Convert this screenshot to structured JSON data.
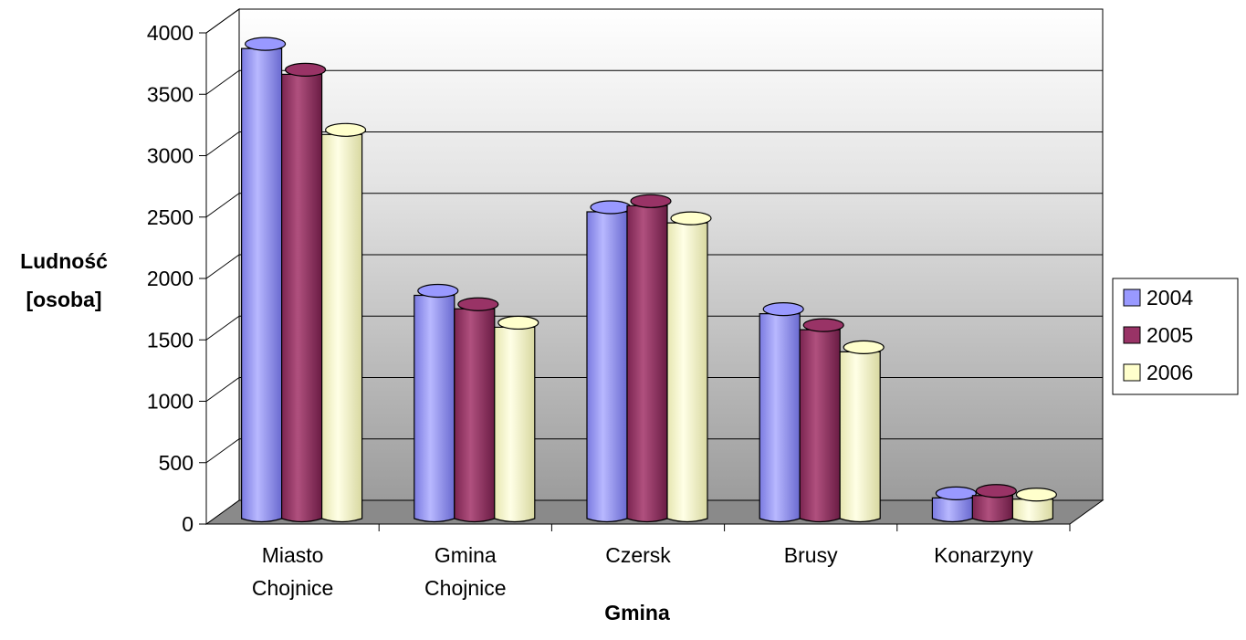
{
  "chart_data": {
    "type": "bar",
    "style": "3d-cylinder",
    "title": "",
    "xlabel": "Gmina",
    "ylabel_lines": [
      "Ludność",
      "[osoba]"
    ],
    "ylim": [
      0,
      4000
    ],
    "ytick_step": 500,
    "grid": true,
    "legend_position": "right",
    "categories": [
      [
        "Miasto",
        "Chojnice"
      ],
      [
        "Gmina",
        "Chojnice"
      ],
      [
        "Czersk"
      ],
      [
        "Brusy"
      ],
      [
        "Konarzyny"
      ]
    ],
    "series": [
      {
        "name": "2004",
        "color": "#9999ff",
        "values": [
          3880,
          1870,
          2550,
          1720,
          220
        ]
      },
      {
        "name": "2005",
        "color": "#993366",
        "values": [
          3670,
          1760,
          2600,
          1590,
          240
        ]
      },
      {
        "name": "2006",
        "color": "#ffffcc",
        "values": [
          3180,
          1610,
          2460,
          1410,
          210
        ]
      }
    ]
  }
}
